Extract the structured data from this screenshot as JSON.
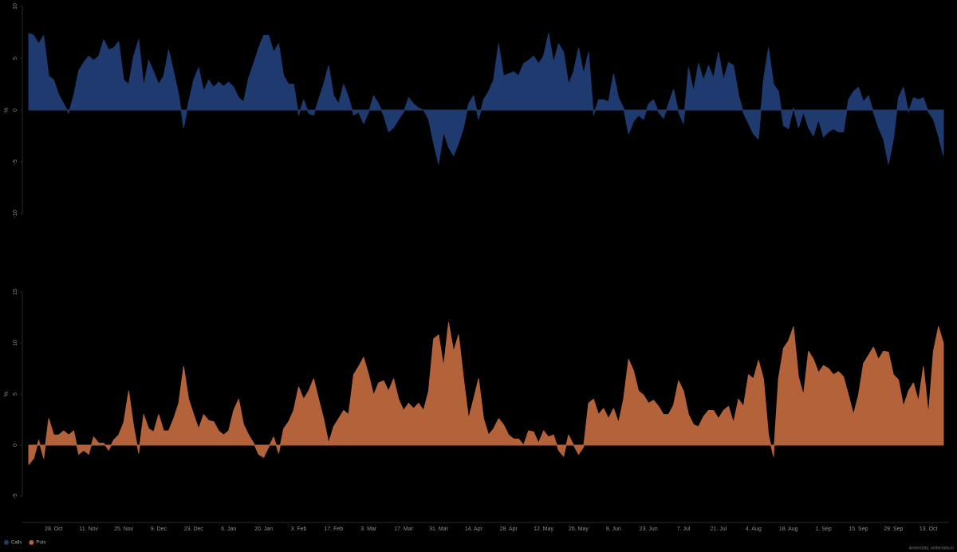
{
  "chart_data": {
    "type": "area",
    "categories": [
      null,
      null,
      null,
      null,
      null,
      "28. Oct",
      null,
      null,
      null,
      null,
      null,
      null,
      "11. Nov",
      null,
      null,
      null,
      null,
      null,
      null,
      "25. Nov",
      null,
      null,
      null,
      null,
      null,
      null,
      "9. Dec",
      null,
      null,
      null,
      null,
      null,
      null,
      "23. Dec",
      null,
      null,
      null,
      null,
      null,
      null,
      "6. Jan",
      null,
      null,
      null,
      null,
      null,
      null,
      "20. Jan",
      null,
      null,
      null,
      null,
      null,
      null,
      "3. Feb",
      null,
      null,
      null,
      null,
      null,
      null,
      "17. Feb",
      null,
      null,
      null,
      null,
      null,
      null,
      "3. Mar",
      null,
      null,
      null,
      null,
      null,
      null,
      "17. Mar",
      null,
      null,
      null,
      null,
      null,
      null,
      "31. Mar",
      null,
      null,
      null,
      null,
      null,
      null,
      "14. Apr",
      null,
      null,
      null,
      null,
      null,
      null,
      "28. Apr",
      null,
      null,
      null,
      null,
      null,
      null,
      "12. May",
      null,
      null,
      null,
      null,
      null,
      null,
      "26. May",
      null,
      null,
      null,
      null,
      null,
      null,
      "9. Jun",
      null,
      null,
      null,
      null,
      null,
      null,
      "23. Jun",
      null,
      null,
      null,
      null,
      null,
      null,
      "7. Jul",
      null,
      null,
      null,
      null,
      null,
      null,
      "21. Jul",
      null,
      null,
      null,
      null,
      null,
      null,
      "4. Aug",
      null,
      null,
      null,
      null,
      null,
      null,
      "18. Aug",
      null,
      null,
      null,
      null,
      null,
      null,
      "1. Sep",
      null,
      null,
      null,
      null,
      null,
      null,
      "15. Sep",
      null,
      null,
      null,
      null,
      null,
      null,
      "29. Sep",
      null,
      null,
      null,
      null,
      null,
      null,
      "13. Oct",
      null,
      null,
      null
    ],
    "series": [
      {
        "name": "Calls",
        "color": "#1e3a6e",
        "values": [
          7.4,
          7.2,
          6.4,
          7.2,
          3.3,
          2.9,
          1.5,
          0.6,
          -0.3,
          1.4,
          3.8,
          4.6,
          5.2,
          4.8,
          5.2,
          6.8,
          5.8,
          6.0,
          6.6,
          2.9,
          2.5,
          5.2,
          6.8,
          2.3,
          4.8,
          3.7,
          2.5,
          3.3,
          5.8,
          3.7,
          1.5,
          -1.7,
          0.8,
          2.9,
          4.1,
          1.8,
          2.9,
          2.2,
          2.7,
          2.3,
          2.7,
          2.2,
          1.2,
          0.8,
          3.1,
          4.5,
          6.0,
          7.2,
          7.2,
          5.6,
          6.4,
          3.3,
          2.5,
          2.5,
          -0.5,
          1.0,
          -0.3,
          -0.5,
          1.0,
          2.5,
          4.3,
          1.4,
          0.6,
          2.5,
          1.2,
          -0.5,
          -0.2,
          -1.3,
          -0.2,
          1.4,
          0.6,
          -0.5,
          -2.1,
          -1.7,
          -0.9,
          -0.2,
          1.2,
          0.6,
          0.2,
          0,
          -0.9,
          -3.2,
          -5.2,
          -2.1,
          -3.6,
          -4.4,
          -3.2,
          -1.7,
          0.6,
          1.4,
          -0.9,
          1.0,
          1.8,
          2.9,
          6.4,
          3.3,
          3.5,
          3.7,
          3.3,
          4.5,
          4.8,
          5.2,
          4.5,
          5.2,
          7.4,
          4.6,
          6.4,
          5.6,
          2.5,
          3.7,
          6.0,
          3.5,
          5.6,
          -0.5,
          1.0,
          1.0,
          0.8,
          3.5,
          1.2,
          0.2,
          -2.3,
          -1.1,
          -0.5,
          -0.9,
          0.6,
          1.0,
          -0.2,
          -0.8,
          0.6,
          2.0,
          -0.2,
          -1.3,
          4.1,
          1.8,
          4.5,
          2.9,
          4.3,
          3.1,
          5.6,
          2.9,
          4.6,
          4.3,
          1.5,
          -0.3,
          -1.3,
          -2.3,
          -2.8,
          2.9,
          6.0,
          2.5,
          1.8,
          -1.5,
          -1.8,
          0.2,
          -1.7,
          -0.2,
          -1.7,
          -2.5,
          -0.9,
          -2.6,
          -2.1,
          -1.8,
          -2.1,
          -2.1,
          1.0,
          1.8,
          2.2,
          0.8,
          1.4,
          -0.2,
          -1.7,
          -2.8,
          -5.2,
          -2.8,
          1.2,
          2.2,
          -0.2,
          1.2,
          1.0,
          1.2,
          -0.2,
          -0.9,
          -2.5,
          -4.4
        ]
      },
      {
        "name": "Puts",
        "color": "#b3623a",
        "axis": "y2",
        "values": [
          -1.9,
          -1.3,
          0.5,
          -1.3,
          2.6,
          1.0,
          1.0,
          1.4,
          1.0,
          1.4,
          -0.9,
          -0.5,
          -0.9,
          0.8,
          0.2,
          0.2,
          -0.5,
          0.5,
          1.0,
          2.2,
          5.3,
          1.8,
          -0.8,
          3.0,
          1.6,
          1.3,
          3.0,
          1.4,
          1.4,
          2.6,
          4.1,
          7.7,
          4.5,
          3.0,
          1.6,
          3.0,
          2.4,
          2.3,
          1.4,
          1.0,
          1.4,
          3.4,
          4.5,
          2.0,
          1.0,
          0.2,
          -0.9,
          -1.2,
          -0.2,
          0.8,
          -0.8,
          1.6,
          2.3,
          3.4,
          5.7,
          4.5,
          5.3,
          6.5,
          4.5,
          2.6,
          0.2,
          1.8,
          2.6,
          3.4,
          3.0,
          6.9,
          7.7,
          8.6,
          6.9,
          4.9,
          6.1,
          6.3,
          5.3,
          6.5,
          4.5,
          3.4,
          4.1,
          3.6,
          4.1,
          3.4,
          5.3,
          10.4,
          10.8,
          7.7,
          12.0,
          9.2,
          10.8,
          6.5,
          2.6,
          4.5,
          6.5,
          2.6,
          1.0,
          1.6,
          2.6,
          2.0,
          1.0,
          0.6,
          0.6,
          0,
          1.4,
          1.3,
          0.2,
          1.4,
          0.8,
          1.0,
          -0.5,
          -1.1,
          1.0,
          0,
          -0.9,
          -0.2,
          4.1,
          4.5,
          3.0,
          3.6,
          2.6,
          3.6,
          2.2,
          4.5,
          8.4,
          7.3,
          5.3,
          4.9,
          4.1,
          4.4,
          3.8,
          3.0,
          3.0,
          3.9,
          6.3,
          5.3,
          3.0,
          2.0,
          1.8,
          2.8,
          3.4,
          3.4,
          2.6,
          3.4,
          3.8,
          2.2,
          4.5,
          3.8,
          6.9,
          6.5,
          8.3,
          6.5,
          1.0,
          -1.1,
          6.5,
          9.5,
          10.2,
          11.6,
          6.7,
          4.9,
          9.2,
          8.4,
          7.1,
          7.8,
          7.5,
          6.9,
          7.2,
          6.7,
          4.9,
          3.0,
          4.9,
          8.0,
          8.8,
          9.6,
          8.4,
          9.2,
          9.1,
          6.9,
          6.4,
          3.8,
          5.3,
          6.1,
          4.3,
          7.7,
          3.0,
          9.2,
          11.6,
          10.0
        ]
      }
    ],
    "ylim": [
      -10,
      10
    ],
    "yticks": [
      -10,
      -5,
      0,
      5,
      10
    ],
    "y2lim": [
      -5,
      15
    ],
    "y2ticks": [
      -5,
      0,
      5,
      10,
      15
    ],
    "ylabel": "%",
    "y2label": "%",
    "legend": "bottom-left",
    "source": "Amberdata, amberdata.io"
  }
}
